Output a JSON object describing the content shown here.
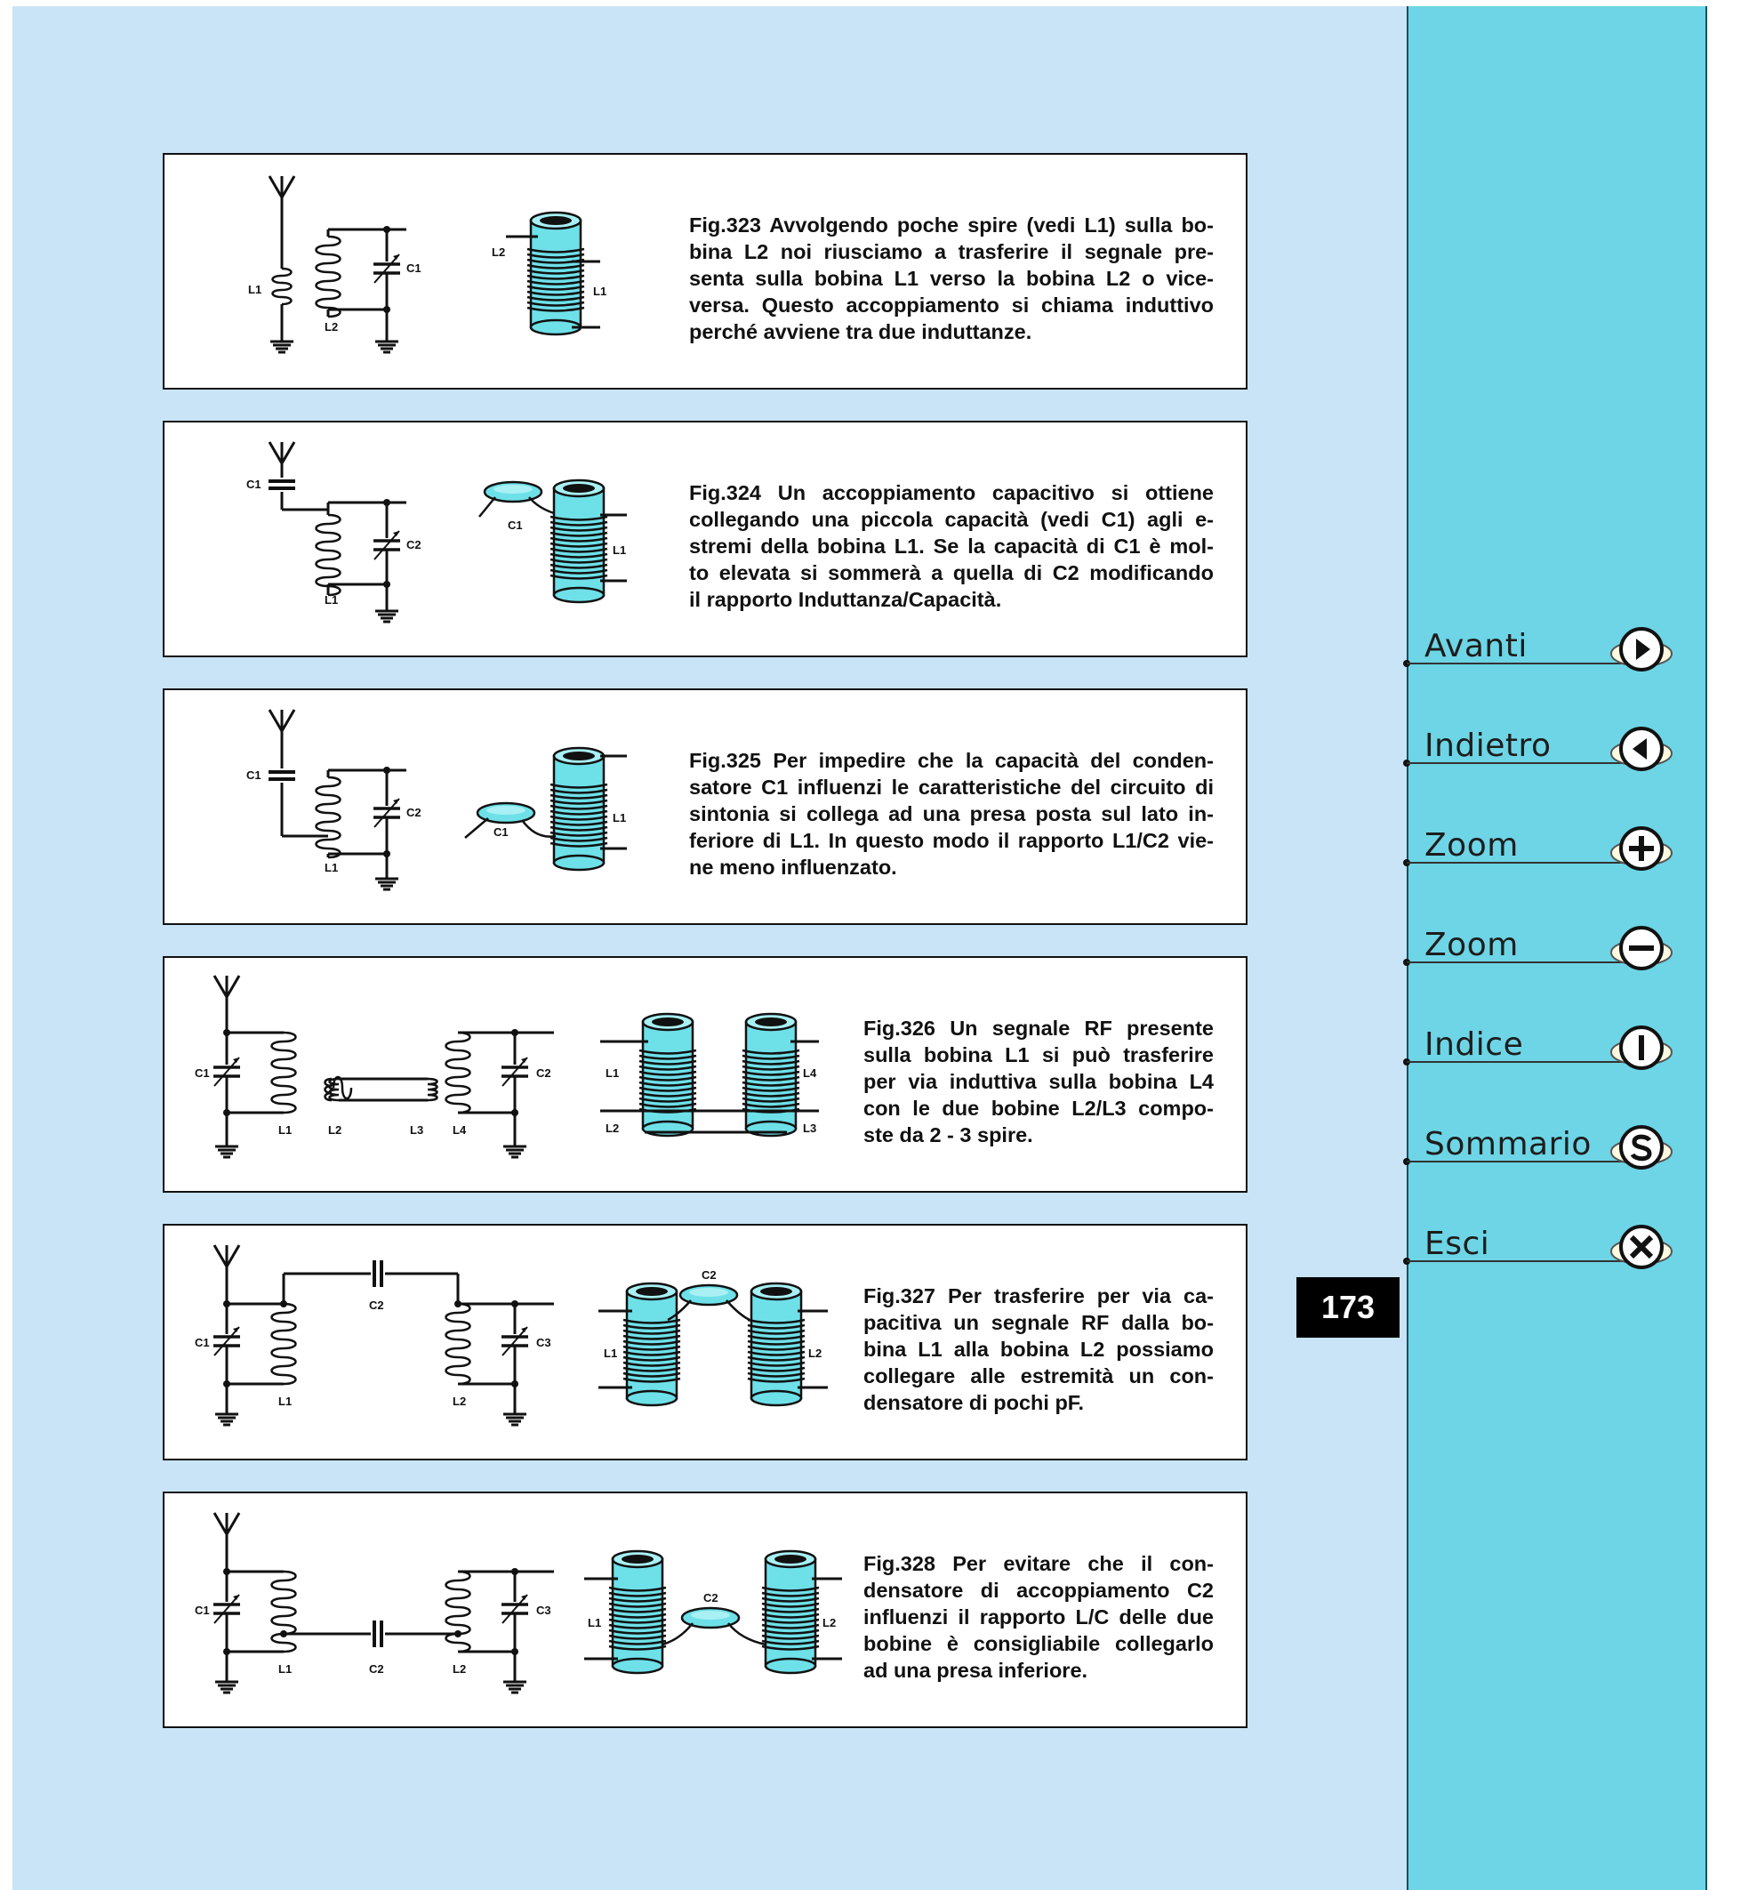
{
  "page_number": "173",
  "navigation": [
    {
      "label": "Avanti",
      "icon": "arrow-right-icon"
    },
    {
      "label": "Indietro",
      "icon": "arrow-left-icon"
    },
    {
      "label": "Zoom",
      "icon": "plus-icon"
    },
    {
      "label": "Zoom",
      "icon": "minus-icon"
    },
    {
      "label": "Indice",
      "icon": "index-icon"
    },
    {
      "label": "Sommario",
      "icon": "s-icon"
    },
    {
      "label": "Esci",
      "icon": "close-icon"
    }
  ],
  "figures": [
    {
      "caption_lines": [
        "Fig.323 Avvolgendo poche spire (vedi L1) sulla bo-",
        "bina L2 noi riusciamo a trasferire il segnale pre-",
        "senta sulla bobina L1 verso la bobina L2 o vice-",
        "versa. Questo accoppiamento si chiama induttivo",
        "perché avviene tra due induttanze."
      ],
      "labels": {
        "schematic_l1": "L1",
        "schematic_l2": "L2",
        "schematic_c1": "C1",
        "coil_l2": "L2",
        "coil_l1": "L1"
      }
    },
    {
      "caption_lines": [
        "Fig.324 Un accoppiamento capacitivo si ottiene",
        "collegando una piccola capacità (vedi C1) agli e-",
        "stremi della bobina L1. Se la capacità di C1 è mol-",
        "to elevata si sommerà a quella di C2 modificando",
        "il rapporto Induttanza/Capacità."
      ],
      "labels": {
        "schematic_c1": "C1",
        "schematic_c2": "C2",
        "schematic_l1": "L1",
        "coil_c1": "C1",
        "coil_l1": "L1"
      }
    },
    {
      "caption_lines": [
        "Fig.325 Per impedire che la capacità del conden-",
        "satore C1 influenzi le caratteristiche del circuito di",
        "sintonia si collega ad una presa posta sul lato in-",
        "feriore di L1. In questo modo il rapporto L1/C2 vie-",
        "ne meno influenzato."
      ],
      "labels": {
        "schematic_c1": "C1",
        "schematic_c2": "C2",
        "schematic_l1": "L1",
        "coil_c1": "C1",
        "coil_l1": "L1"
      }
    },
    {
      "caption_lines": [
        "Fig.326 Un segnale RF presente",
        "sulla bobina L1 si può trasferire",
        "per via induttiva sulla bobina L4",
        "con le due bobine L2/L3 compo-",
        "ste da 2 - 3 spire."
      ],
      "labels": {
        "c1": "C1",
        "l1": "L1",
        "l2": "L2",
        "l3": "L3",
        "l4": "L4",
        "c2": "C2",
        "coil_l1": "L1",
        "coil_l2": "L2",
        "coil_l4": "L4",
        "coil_l3": "L3"
      }
    },
    {
      "caption_lines": [
        "Fig.327 Per trasferire per via ca-",
        "pacitiva un segnale RF dalla bo-",
        "bina L1 alla bobina L2 possiamo",
        "collegare alle estremità un con-",
        "densatore di pochi pF."
      ],
      "labels": {
        "c1": "C1",
        "c2": "C2",
        "c3": "C3",
        "l1": "L1",
        "l2": "L2",
        "coil_c2": "C2",
        "coil_l1": "L1",
        "coil_l2": "L2"
      }
    },
    {
      "caption_lines": [
        "Fig.328 Per evitare che il con-",
        "densatore di accoppiamento C2",
        "influenzi il rapporto L/C delle due",
        "bobine è consigliabile collegarlo",
        "ad una presa inferiore."
      ],
      "labels": {
        "c1": "C1",
        "c2": "C2",
        "c3": "C3",
        "l1": "L1",
        "l2": "L2",
        "coil_c2": "C2",
        "coil_l1": "L1",
        "coil_l2": "L2"
      }
    }
  ]
}
